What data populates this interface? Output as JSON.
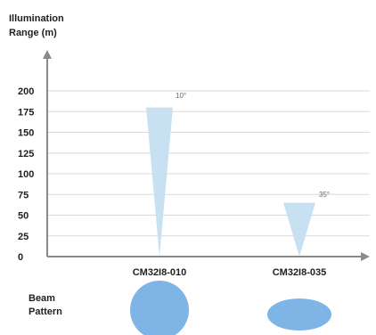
{
  "chart_data": {
    "type": "bar",
    "ylabel_lines": [
      "Illumination",
      "Range (m)"
    ],
    "ylim": [
      0,
      200
    ],
    "yticks": [
      0,
      25,
      50,
      75,
      100,
      125,
      150,
      175,
      200
    ],
    "categories": [
      "CM32I8-010",
      "CM32I8-035"
    ],
    "values": [
      180,
      65
    ],
    "beam_angles": [
      "10°",
      "35°"
    ],
    "grid": true,
    "beam_pattern_label_lines": [
      "Beam",
      "Pattern"
    ],
    "colors": {
      "beam": "#c7e1f3",
      "pattern": "#7eb4e6",
      "axis": "#8a8a8a",
      "grid": "#d9d9d9",
      "text": "#1f1f1f",
      "angle_text": "#666666"
    }
  }
}
